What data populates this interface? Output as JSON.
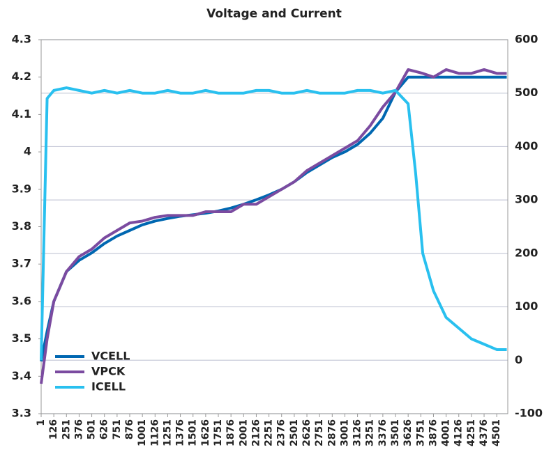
{
  "chart_data": {
    "type": "line",
    "title": "Voltage and Current",
    "x": [
      1,
      60,
      126,
      251,
      376,
      501,
      626,
      751,
      876,
      1001,
      1126,
      1251,
      1376,
      1501,
      1626,
      1751,
      1876,
      2001,
      2126,
      2251,
      2376,
      2501,
      2626,
      2751,
      2876,
      3001,
      3126,
      3251,
      3376,
      3501,
      3626,
      3700,
      3770,
      3876,
      4001,
      4126,
      4251,
      4376,
      4501,
      4600
    ],
    "series": [
      {
        "name": "VCELL",
        "color": "#0067b1",
        "values": [
          3.44,
          3.52,
          3.6,
          3.68,
          3.71,
          3.73,
          3.755,
          3.775,
          3.79,
          3.805,
          3.815,
          3.822,
          3.828,
          3.832,
          3.836,
          3.842,
          3.85,
          3.86,
          3.872,
          3.885,
          3.9,
          3.92,
          3.945,
          3.965,
          3.985,
          4.0,
          4.02,
          4.05,
          4.09,
          4.16,
          4.2,
          4.2,
          4.2,
          4.2,
          4.2,
          4.2,
          4.2,
          4.2,
          4.2,
          4.2
        ]
      },
      {
        "name": "VPCK",
        "color": "#7b4ba0",
        "values": [
          3.38,
          3.5,
          3.6,
          3.68,
          3.72,
          3.74,
          3.77,
          3.79,
          3.81,
          3.815,
          3.825,
          3.83,
          3.83,
          3.83,
          3.84,
          3.84,
          3.84,
          3.86,
          3.86,
          3.88,
          3.9,
          3.92,
          3.95,
          3.97,
          3.99,
          4.01,
          4.03,
          4.07,
          4.12,
          4.16,
          4.22,
          4.215,
          4.21,
          4.2,
          4.22,
          4.21,
          4.21,
          4.22,
          4.21,
          4.21
        ]
      },
      {
        "name": "ICELL",
        "color": "#29c0ef",
        "axis": "y2",
        "values": [
          0,
          490,
          505,
          510,
          505,
          500,
          505,
          500,
          505,
          500,
          500,
          505,
          500,
          500,
          505,
          500,
          500,
          500,
          505,
          505,
          500,
          500,
          505,
          500,
          500,
          500,
          505,
          505,
          500,
          505,
          480,
          350,
          200,
          130,
          80,
          60,
          40,
          30,
          20,
          20
        ]
      }
    ],
    "xlim": [
      1,
      4610
    ],
    "xticks": [
      1,
      126,
      251,
      376,
      501,
      626,
      751,
      876,
      1001,
      1126,
      1251,
      1376,
      1501,
      1626,
      1751,
      1876,
      2001,
      2126,
      2251,
      2376,
      2501,
      2626,
      2751,
      2876,
      3001,
      3126,
      3251,
      3376,
      3501,
      3626,
      3751,
      3876,
      4001,
      4126,
      4251,
      4376,
      4501
    ],
    "ylim": [
      3.3,
      4.3
    ],
    "yticks": [
      3.3,
      3.4,
      3.5,
      3.6,
      3.7,
      3.8,
      3.9,
      4,
      4.1,
      4.2,
      4.3
    ],
    "y2lim": [
      -100,
      600
    ],
    "y2ticks": [
      -100,
      0,
      100,
      200,
      300,
      400,
      500,
      600
    ],
    "grid": true,
    "legend": "lower left"
  }
}
